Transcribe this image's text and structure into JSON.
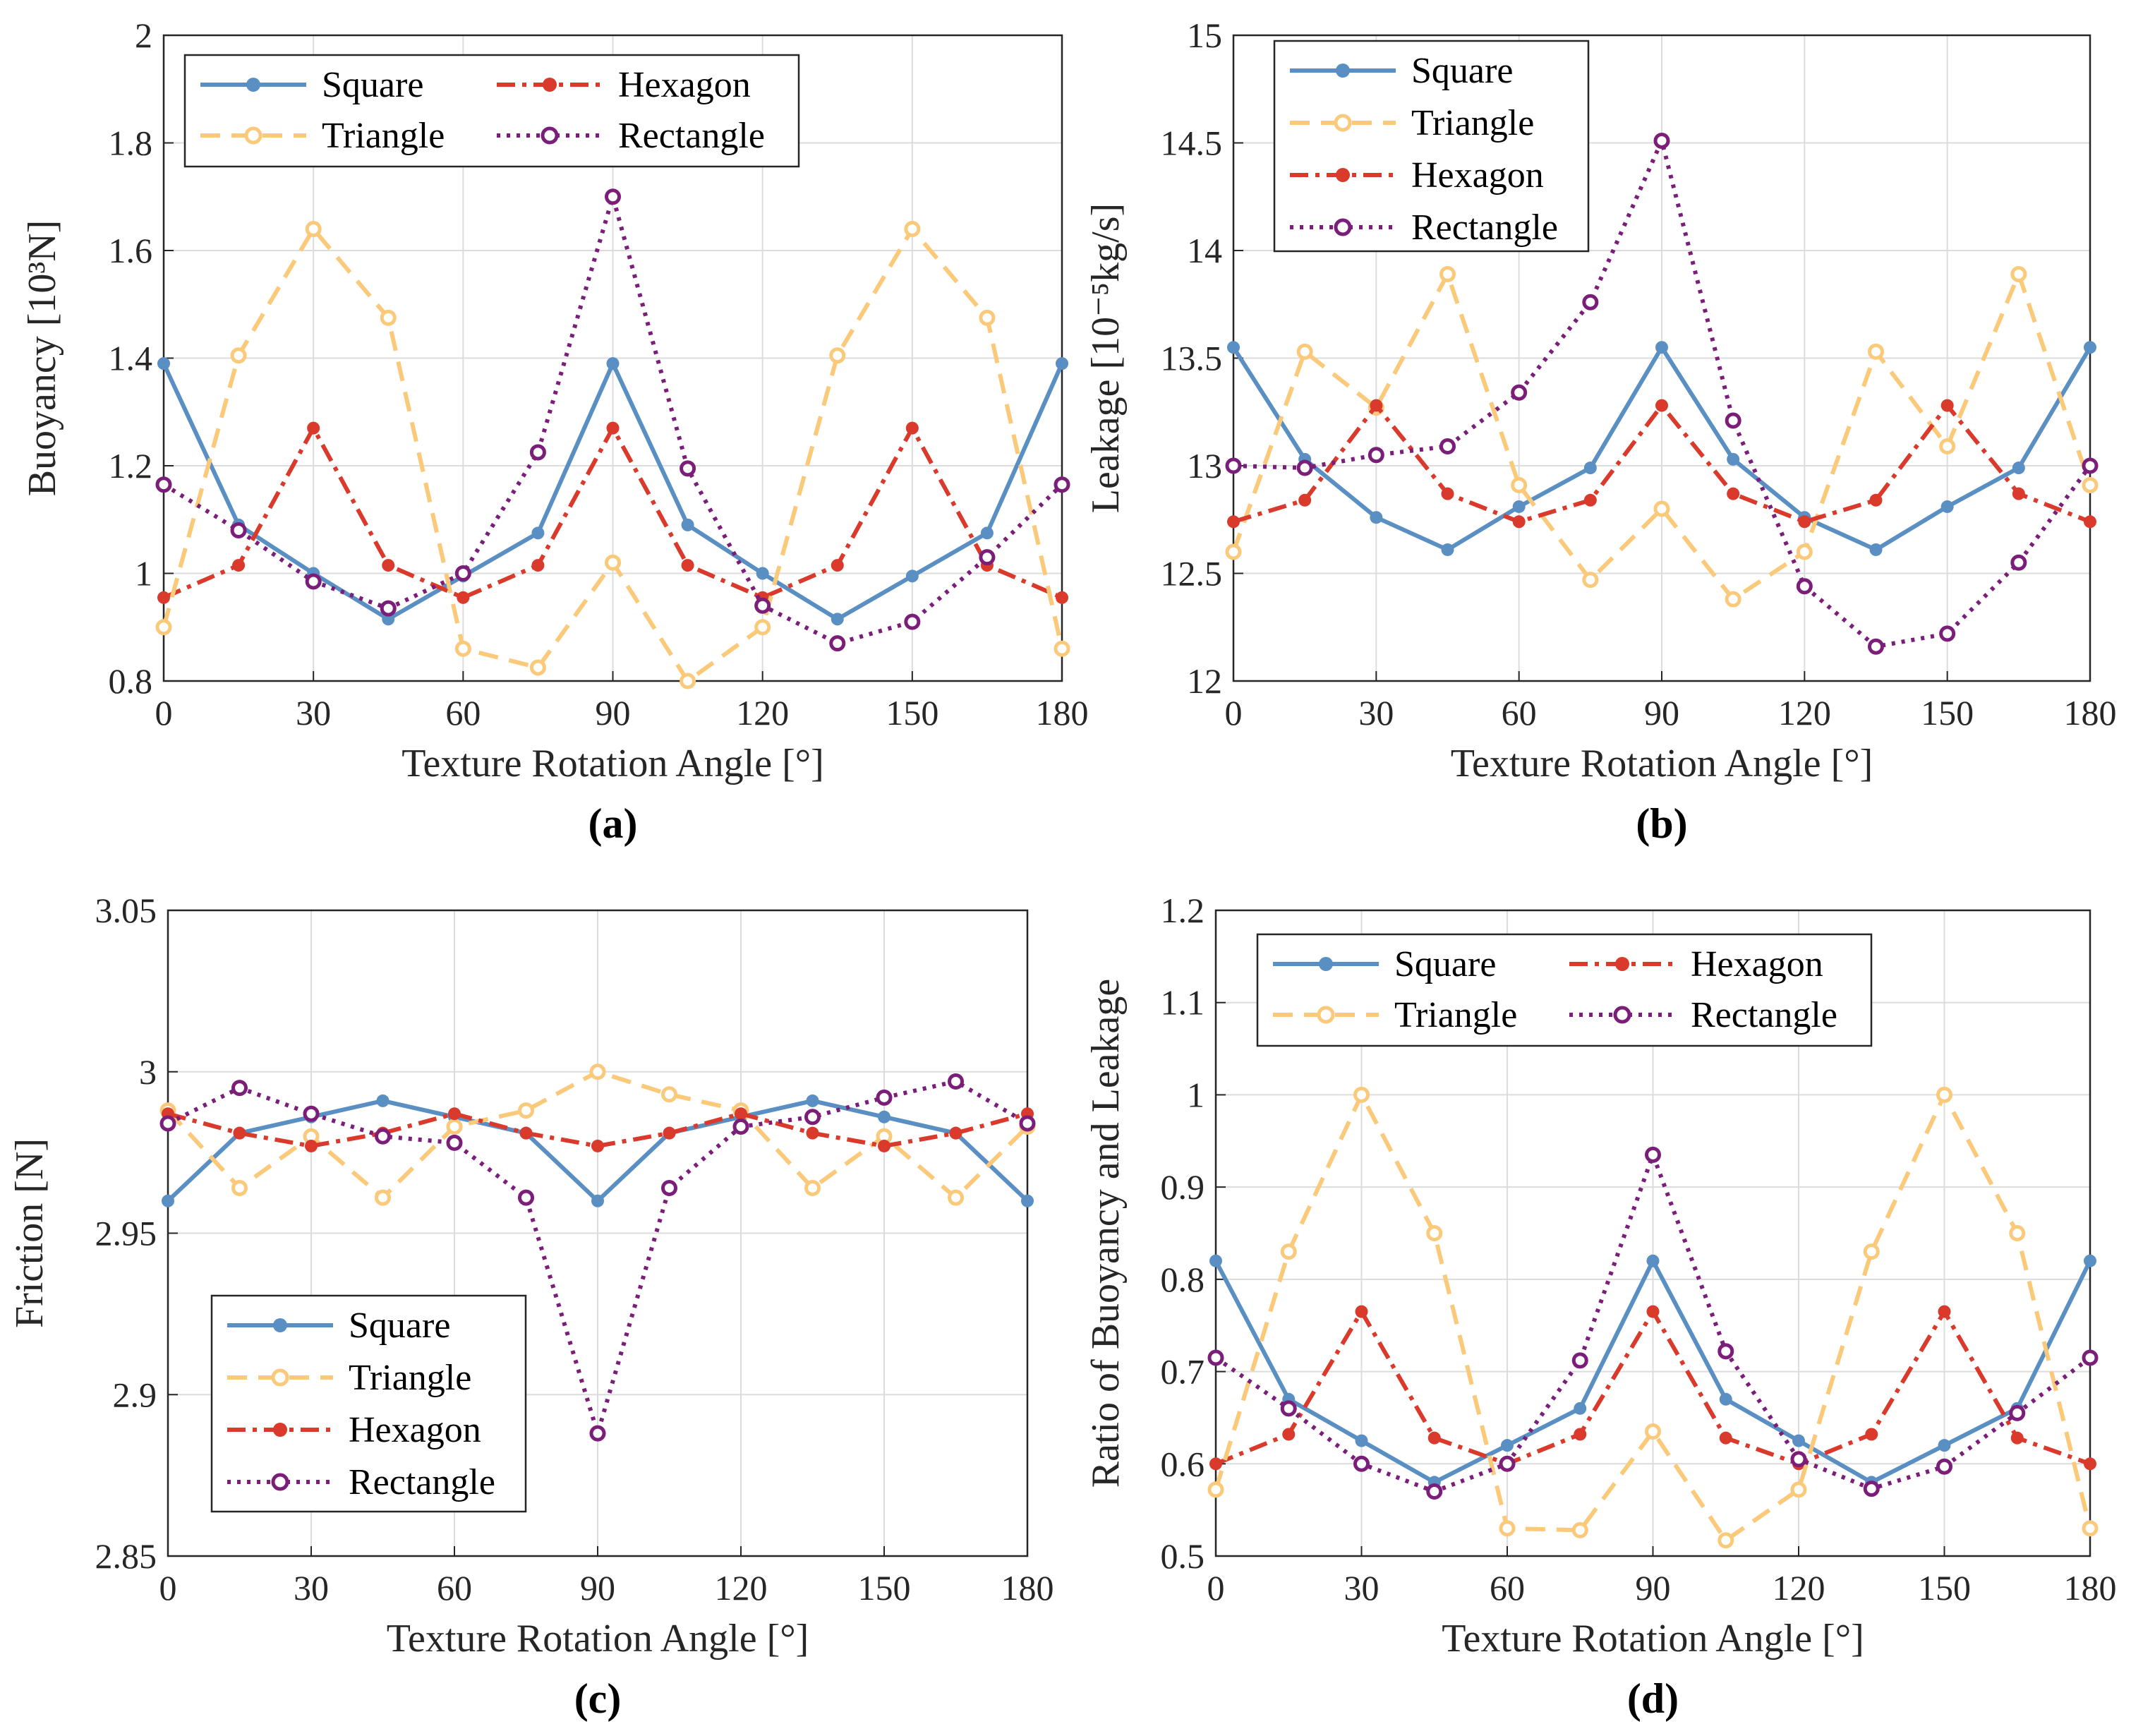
{
  "chart_data": [
    {
      "type": "line",
      "panel": "a",
      "caption": "(a)",
      "xlabel": "Texture Rotation Angle [°]",
      "ylabel": "Buoyancy [10³N]",
      "xlim": [
        0,
        180
      ],
      "ylim": [
        0.8,
        2
      ],
      "xticks": [
        0,
        30,
        60,
        90,
        120,
        150,
        180
      ],
      "yticks": [
        0.8,
        1,
        1.2,
        1.4,
        1.6,
        1.8,
        2
      ],
      "ytick_labels": [
        "0.8",
        "1",
        "1.2",
        "1.4",
        "1.6",
        "1.8",
        "2"
      ],
      "legend": {
        "placement": "top-left",
        "columns": 2
      },
      "x": [
        0,
        15,
        30,
        45,
        60,
        75,
        90,
        105,
        120,
        135,
        150,
        165,
        180
      ],
      "series": [
        {
          "name": "Square",
          "color": "#5a8fc3",
          "style": "solid",
          "marker": "filled",
          "values": [
            1.39,
            1.09,
            1.0,
            0.915,
            0.995,
            1.075,
            1.39,
            1.09,
            1.0,
            0.915,
            0.995,
            1.075,
            1.39
          ]
        },
        {
          "name": "Hexagon",
          "color": "#d93a2b",
          "style": "dashdot",
          "marker": "filled",
          "values": [
            0.955,
            1.015,
            1.27,
            1.015,
            0.955,
            1.015,
            1.27,
            1.015,
            0.955,
            1.015,
            1.27,
            1.015,
            0.955
          ]
        },
        {
          "name": "Triangle",
          "color": "#fbc97a",
          "style": "dashed",
          "marker": "open",
          "values": [
            0.9,
            1.405,
            1.64,
            1.475,
            0.86,
            0.825,
            1.02,
            0.8,
            0.9,
            1.405,
            1.64,
            1.475,
            0.86
          ]
        },
        {
          "name": "Rectangle",
          "color": "#7b1e7a",
          "style": "dotted",
          "marker": "open",
          "values": [
            1.165,
            1.08,
            0.985,
            0.935,
            1.0,
            1.225,
            1.7,
            1.195,
            0.94,
            0.87,
            0.91,
            1.03,
            1.165
          ]
        }
      ]
    },
    {
      "type": "line",
      "panel": "b",
      "caption": "(b)",
      "xlabel": "Texture Rotation Angle [°]",
      "ylabel": "Leakage [10⁻⁵kg/s]",
      "xlim": [
        0,
        180
      ],
      "ylim": [
        12,
        15
      ],
      "xticks": [
        0,
        30,
        60,
        90,
        120,
        150,
        180
      ],
      "yticks": [
        12,
        12.5,
        13,
        13.5,
        14,
        14.5,
        15
      ],
      "ytick_labels": [
        "12",
        "12.5",
        "13",
        "13.5",
        "14",
        "14.5",
        "15"
      ],
      "legend": {
        "placement": "top-left",
        "columns": 1
      },
      "x": [
        0,
        15,
        30,
        45,
        60,
        75,
        90,
        105,
        120,
        135,
        150,
        165,
        180
      ],
      "series": [
        {
          "name": "Square",
          "color": "#5a8fc3",
          "style": "solid",
          "marker": "filled",
          "values": [
            13.55,
            13.03,
            12.76,
            12.61,
            12.81,
            12.99,
            13.55,
            13.03,
            12.76,
            12.61,
            12.81,
            12.99,
            13.55
          ]
        },
        {
          "name": "Triangle",
          "color": "#fbc97a",
          "style": "dashed",
          "marker": "open",
          "values": [
            12.6,
            13.53,
            13.27,
            13.89,
            12.91,
            12.47,
            12.8,
            12.38,
            12.6,
            13.53,
            13.09,
            13.89,
            12.91
          ]
        },
        {
          "name": "Hexagon",
          "color": "#d93a2b",
          "style": "dashdot",
          "marker": "filled",
          "values": [
            12.74,
            12.84,
            13.28,
            12.87,
            12.74,
            12.84,
            13.28,
            12.87,
            12.74,
            12.84,
            13.28,
            12.87,
            12.74
          ]
        },
        {
          "name": "Rectangle",
          "color": "#7b1e7a",
          "style": "dotted",
          "marker": "open",
          "values": [
            13.0,
            12.99,
            13.05,
            13.09,
            13.34,
            13.76,
            14.51,
            13.21,
            12.44,
            12.16,
            12.22,
            12.55,
            13.0
          ]
        }
      ]
    },
    {
      "type": "line",
      "panel": "c",
      "caption": "(c)",
      "xlabel": "Texture Rotation Angle [°]",
      "ylabel": "Friction [N]",
      "xlim": [
        0,
        180
      ],
      "ylim": [
        2.85,
        3.05
      ],
      "xticks": [
        0,
        30,
        60,
        90,
        120,
        150,
        180
      ],
      "yticks": [
        2.85,
        2.9,
        2.95,
        3,
        3.05
      ],
      "ytick_labels": [
        "2.85",
        "2.9",
        "2.95",
        "3",
        "3.05"
      ],
      "legend": {
        "placement": "bottom-left",
        "columns": 1
      },
      "x": [
        0,
        15,
        30,
        45,
        60,
        75,
        90,
        105,
        120,
        135,
        150,
        165,
        180
      ],
      "series": [
        {
          "name": "Square",
          "color": "#5a8fc3",
          "style": "solid",
          "marker": "filled",
          "values": [
            2.96,
            2.981,
            2.986,
            2.991,
            2.986,
            2.981,
            2.96,
            2.981,
            2.986,
            2.991,
            2.986,
            2.981,
            2.96
          ]
        },
        {
          "name": "Triangle",
          "color": "#fbc97a",
          "style": "dashed",
          "marker": "open",
          "values": [
            2.988,
            2.964,
            2.98,
            2.961,
            2.983,
            2.988,
            3.0,
            2.993,
            2.988,
            2.964,
            2.98,
            2.961,
            2.983
          ]
        },
        {
          "name": "Hexagon",
          "color": "#d93a2b",
          "style": "dashdot",
          "marker": "filled",
          "values": [
            2.987,
            2.981,
            2.977,
            2.981,
            2.987,
            2.981,
            2.977,
            2.981,
            2.987,
            2.981,
            2.977,
            2.981,
            2.987
          ]
        },
        {
          "name": "Rectangle",
          "color": "#7b1e7a",
          "style": "dotted",
          "marker": "open",
          "values": [
            2.984,
            2.995,
            2.987,
            2.98,
            2.978,
            2.961,
            2.888,
            2.964,
            2.983,
            2.986,
            2.992,
            2.997,
            2.984
          ]
        }
      ]
    },
    {
      "type": "line",
      "panel": "d",
      "caption": "(d)",
      "xlabel": "Texture Rotation Angle [°]",
      "ylabel": "Ratio of Buoyancy and Leakage",
      "xlim": [
        0,
        180
      ],
      "ylim": [
        0.5,
        1.2
      ],
      "xticks": [
        0,
        30,
        60,
        90,
        120,
        150,
        180
      ],
      "yticks": [
        0.5,
        0.6,
        0.7,
        0.8,
        0.9,
        1,
        1.1,
        1.2
      ],
      "ytick_labels": [
        "0.5",
        "0.6",
        "0.7",
        "0.8",
        "0.9",
        "1",
        "1.1",
        "1.2"
      ],
      "legend": {
        "placement": "top-left",
        "columns": 2
      },
      "x": [
        0,
        15,
        30,
        45,
        60,
        75,
        90,
        105,
        120,
        135,
        150,
        165,
        180
      ],
      "series": [
        {
          "name": "Square",
          "color": "#5a8fc3",
          "style": "solid",
          "marker": "filled",
          "values": [
            0.82,
            0.67,
            0.625,
            0.58,
            0.62,
            0.66,
            0.82,
            0.67,
            0.625,
            0.58,
            0.62,
            0.66,
            0.82
          ]
        },
        {
          "name": "Hexagon",
          "color": "#d93a2b",
          "style": "dashdot",
          "marker": "filled",
          "values": [
            0.6,
            0.632,
            0.765,
            0.628,
            0.6,
            0.632,
            0.765,
            0.628,
            0.6,
            0.632,
            0.765,
            0.628,
            0.6
          ]
        },
        {
          "name": "Triangle",
          "color": "#fbc97a",
          "style": "dashed",
          "marker": "open",
          "values": [
            0.572,
            0.83,
            1.0,
            0.85,
            0.53,
            0.528,
            0.635,
            0.517,
            0.572,
            0.83,
            1.0,
            0.85,
            0.53
          ]
        },
        {
          "name": "Rectangle",
          "color": "#7b1e7a",
          "style": "dotted",
          "marker": "open",
          "values": [
            0.715,
            0.66,
            0.6,
            0.57,
            0.6,
            0.712,
            0.935,
            0.722,
            0.605,
            0.573,
            0.597,
            0.655,
            0.715
          ]
        }
      ]
    }
  ]
}
